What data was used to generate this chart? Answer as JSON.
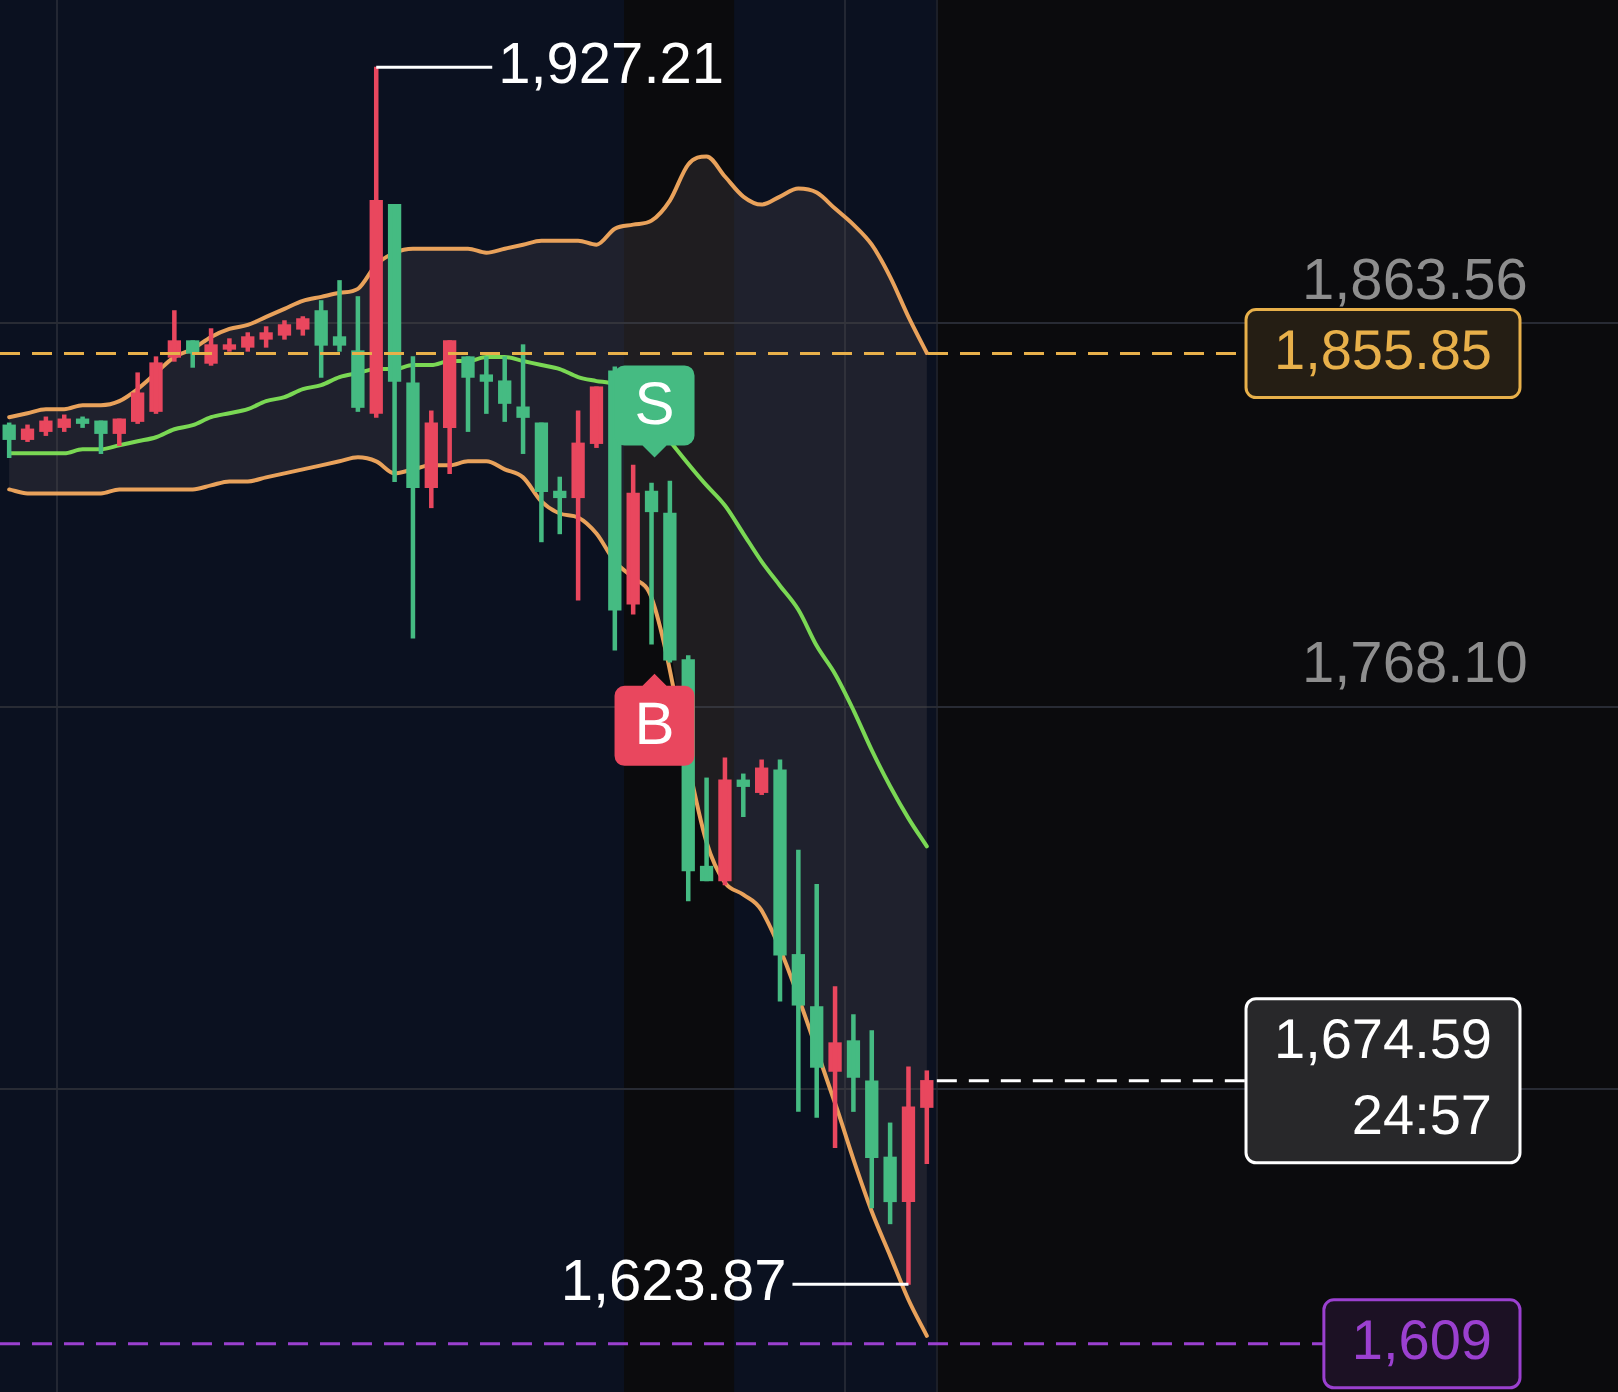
{
  "chart_data": {
    "type": "candlestick",
    "categories": [
      null,
      null,
      null,
      null,
      null,
      null,
      null,
      null,
      null,
      null,
      null,
      null,
      null,
      null,
      null,
      null,
      null,
      null,
      null,
      null,
      null,
      null,
      null,
      null,
      null,
      null,
      null,
      null,
      null,
      null,
      null,
      null,
      null,
      null,
      null,
      null,
      null,
      null,
      null,
      null,
      null,
      null,
      null,
      null,
      null,
      null,
      null,
      null,
      null,
      null,
      null
    ],
    "ylim": [
      1597,
      1944
    ],
    "yticks": [
      {
        "value": 1863.56,
        "label": "1,863.56"
      },
      {
        "value": 1768.1,
        "label": "1,768.10"
      },
      {
        "value": 1672.64,
        "label": null
      }
    ],
    "grid": "y",
    "series": [
      {
        "ohlc": [
          [
            1838,
            1838.5,
            1830,
            1834.5
          ],
          [
            1834.5,
            1838,
            1834,
            1837
          ],
          [
            1836.5,
            1840,
            1835.5,
            1839
          ],
          [
            1837.5,
            1840.5,
            1836.5,
            1839.5
          ],
          [
            1839.5,
            1840,
            1837.5,
            1838.5
          ],
          [
            1839,
            1839,
            1831,
            1836
          ],
          [
            1836,
            1839.5,
            1833,
            1839.5
          ],
          [
            1839,
            1851,
            1838.5,
            1846
          ],
          [
            1841.5,
            1855,
            1841,
            1853.5
          ],
          [
            1855,
            1866.5,
            1854,
            1859
          ],
          [
            1859,
            1859,
            1852.5,
            1856
          ],
          [
            1853.5,
            1862,
            1853,
            1858
          ],
          [
            1857,
            1859.5,
            1856.5,
            1858
          ],
          [
            1857.5,
            1861,
            1856.5,
            1860
          ],
          [
            1859.5,
            1862.5,
            1857.5,
            1861
          ],
          [
            1860.5,
            1864,
            1859.5,
            1863
          ],
          [
            1862,
            1865,
            1860.5,
            1864.5
          ],
          [
            1866.5,
            1869,
            1850,
            1858
          ],
          [
            1860,
            1874,
            1856.5,
            1858
          ],
          [
            1856.5,
            1870,
            1841.5,
            1842.5
          ],
          [
            1841,
            1927.21,
            1840,
            1894
          ],
          [
            1893,
            1893,
            1824,
            1849
          ],
          [
            1848.5,
            1855,
            1785,
            1822.5
          ],
          [
            1822.5,
            1841.5,
            1817.5,
            1838.5
          ],
          [
            1837.5,
            1859,
            1826,
            1859
          ],
          [
            1855,
            1855,
            1836.5,
            1850
          ],
          [
            1850.5,
            1855,
            1841,
            1849
          ],
          [
            1849,
            1855,
            1839,
            1843.5
          ],
          [
            1842.5,
            1858,
            1831,
            1840
          ],
          [
            1838.5,
            1838.5,
            1809,
            1821.5
          ],
          [
            1821.5,
            1825,
            1811,
            1820
          ],
          [
            1820,
            1841.5,
            1794.5,
            1833.5
          ],
          [
            1833.5,
            1847.5,
            1832.5,
            1847.5
          ],
          [
            1851.5,
            1852.5,
            1782,
            1792
          ],
          [
            1793.5,
            1828,
            1791,
            1821
          ],
          [
            1821.5,
            1823.5,
            1783.5,
            1816.5
          ],
          [
            1816,
            1824,
            1779,
            1779.5
          ],
          [
            1779.5,
            1780.5,
            1719.5,
            1727
          ],
          [
            1728,
            1750,
            1724.5,
            1724.5
          ],
          [
            1724.5,
            1755,
            1723.5,
            1749.5
          ],
          [
            1749.5,
            1751,
            1740.5,
            1748
          ],
          [
            1746.5,
            1754.5,
            1746,
            1752.5
          ],
          [
            1752,
            1754.5,
            1694.5,
            1706
          ],
          [
            1706,
            1732,
            1667,
            1693.5
          ],
          [
            1693,
            1723.5,
            1665.5,
            1678
          ],
          [
            1677,
            1698,
            1658,
            1684
          ],
          [
            1684.5,
            1691,
            1667,
            1675.5
          ],
          [
            1674.5,
            1687,
            1643,
            1655.5
          ],
          [
            1655.5,
            1664,
            1639,
            1644.5
          ],
          [
            1644.5,
            1678,
            1623.87,
            1668
          ],
          [
            1668,
            1677,
            1654,
            1674.59
          ]
        ],
        "colors": [
          "#45bb82",
          "#e9475e",
          "#e9475e",
          "#e9475e",
          "#45bb82",
          "#45bb82",
          "#e9475e",
          "#e9475e",
          "#e9475e",
          "#e9475e",
          "#45bb82",
          "#e9475e",
          "#e9475e",
          "#e9475e",
          "#e9475e",
          "#e9475e",
          "#e9475e",
          "#45bb82",
          "#45bb82",
          "#45bb82",
          "#e9475e",
          "#45bb82",
          "#45bb82",
          "#e9475e",
          "#e9475e",
          "#45bb82",
          "#45bb82",
          "#45bb82",
          "#45bb82",
          "#45bb82",
          "#45bb82",
          "#e9475e",
          "#e9475e",
          "#45bb82",
          "#e9475e",
          "#45bb82",
          "#45bb82",
          "#45bb82",
          "#45bb82",
          "#e9475e",
          "#45bb82",
          "#e9475e",
          "#45bb82",
          "#45bb82",
          "#45bb82",
          "#e9475e",
          "#45bb82",
          "#45bb82",
          "#45bb82",
          "#e9475e",
          "#e9475e"
        ]
      },
      {
        "type": "line",
        "color": "#e9a25b",
        "values": [
          1840,
          1841,
          1842,
          1842,
          1843,
          1843,
          1844,
          1847,
          1851,
          1855,
          1857,
          1860,
          1862,
          1863,
          1865,
          1867,
          1869,
          1870,
          1871,
          1872,
          1878,
          1881,
          1882,
          1882,
          1882,
          1882,
          1881,
          1882,
          1883,
          1884,
          1884,
          1884,
          1883,
          1887,
          1888,
          1889,
          1894,
          1903,
          1905,
          1900,
          1895,
          1893,
          1895,
          1897,
          1896,
          1892,
          1888,
          1883,
          1875,
          1865,
          1856
        ]
      },
      {
        "type": "line",
        "color": "#7ad854",
        "values": [
          1831,
          1831,
          1831,
          1831,
          1832,
          1832,
          1833,
          1834,
          1835,
          1837,
          1838,
          1840,
          1841,
          1842,
          1844,
          1845,
          1847,
          1848,
          1850,
          1851,
          1852,
          1852,
          1853,
          1853,
          1854,
          1854,
          1855,
          1855,
          1854,
          1853,
          1852,
          1850,
          1849,
          1848,
          null,
          null,
          null,
          null,
          1823,
          1818,
          1811,
          1804,
          1798,
          1792,
          1783,
          1776,
          1767,
          1757,
          1748,
          1740,
          1733
        ],
        "upper": [
          1840,
          1841,
          1842,
          1842,
          1843,
          1843,
          1844,
          1847,
          1851,
          1855,
          1857,
          1860,
          1862,
          1863,
          1865,
          1867,
          1869,
          1870,
          1871,
          1872,
          1878,
          1881,
          1882,
          1882,
          1882,
          1882,
          1881,
          1882,
          1883,
          1884,
          1884,
          1884,
          1883,
          1887,
          1888,
          1889,
          1894,
          1903,
          1905,
          1900,
          1895,
          1893,
          1895,
          1897,
          1896,
          1892,
          1888,
          1883,
          1875,
          1865,
          1856
        ],
        "lower": [
          1822,
          1821,
          1821,
          1821,
          1821,
          1821,
          1822,
          1822,
          1822,
          1822,
          1822,
          1823,
          1824,
          1824,
          1825,
          1826,
          1827,
          1828,
          1829,
          1830,
          1829,
          1826,
          1827,
          1828,
          1828,
          1829,
          1829,
          1827,
          1825,
          1819,
          1816,
          1815,
          1811,
          1804,
          1800,
          1795,
          1784,
          1751,
          1734,
          1724,
          1721,
          1717,
          1709,
          1697,
          1683,
          1669,
          1655,
          1642,
          1631,
          1620,
          1611
        ]
      },
      {
        "type": "line",
        "color": "#e9a25b",
        "values": [
          1822,
          1821,
          1821,
          1821,
          1821,
          1821,
          1822,
          1822,
          1822,
          1822,
          1822,
          1823,
          1824,
          1824,
          1825,
          1826,
          1827,
          1828,
          1829,
          1830,
          1829,
          1826,
          1827,
          1828,
          1828,
          1829,
          1829,
          1827,
          1825,
          1819,
          1816,
          1815,
          1811,
          1804,
          1800,
          1795,
          null,
          null,
          1734,
          1724,
          1721,
          1717,
          null,
          null,
          null,
          1669,
          1655,
          1642,
          1631,
          1620,
          1611
        ]
      }
    ],
    "ref_lines": [
      {
        "axis": "y",
        "value": 1855.85,
        "label": "1,855.85",
        "color": "#e8b04a",
        "line_style": "dashed"
      },
      {
        "axis": "y",
        "value": 1674.59,
        "label": "1,674.59\n24:57",
        "color": "#ffffff",
        "line_style": "dashed"
      },
      {
        "axis": "y",
        "value": 1609,
        "label": "1,609",
        "color": "#9b40d0",
        "line_style": "dashed"
      }
    ],
    "annotations": [
      "1,927.21",
      "1,623.87",
      {
        "text": "S",
        "y": 1823.5
      },
      {
        "text": "B",
        "y": 1783.5
      }
    ]
  }
}
